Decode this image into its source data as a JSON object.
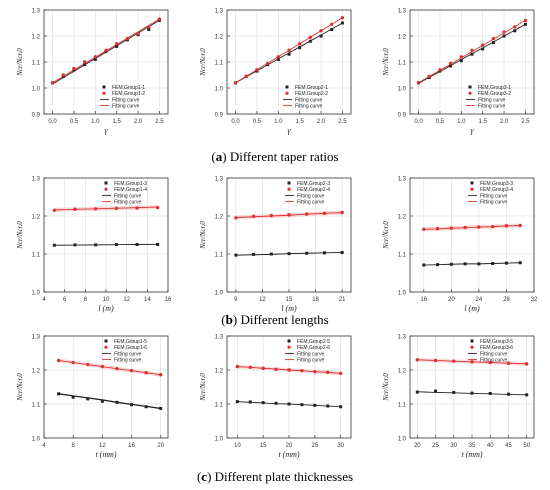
{
  "captions": [
    {
      "letter": "a",
      "text": "Different taper ratios"
    },
    {
      "letter": "b",
      "text": "Different lengths"
    },
    {
      "letter": "c",
      "text": "Different plate thicknesses"
    }
  ],
  "colors": {
    "black_series": "#222222",
    "red_series": "#e03030",
    "red_band": "#f4b9b9",
    "grid": "#dddddd"
  },
  "chart_data": [
    {
      "type": "line",
      "row": 0,
      "col": 0,
      "xlabel": "γ",
      "ylabel": "Ncr/Ncr,0",
      "xlim": [
        -0.2,
        2.7
      ],
      "ylim": [
        0.9,
        1.3
      ],
      "xticks": [
        "0.0",
        "0.5",
        "1.0",
        "1.5",
        "2.0",
        "2.5"
      ],
      "xtick_values": [
        0,
        0.5,
        1,
        1.5,
        2,
        2.5
      ],
      "yticks": [
        "0.9",
        "1.0",
        "1.1",
        "1.2",
        "1.3"
      ],
      "ytick_values": [
        0.9,
        1.0,
        1.1,
        1.2,
        1.3
      ],
      "x": [
        0,
        0.25,
        0.5,
        0.75,
        1,
        1.25,
        1.5,
        1.75,
        2,
        2.25,
        2.5
      ],
      "series": [
        {
          "name": "FEM,Group1-1",
          "kind": "points",
          "color": "black",
          "values": [
            1.02,
            1.045,
            1.07,
            1.09,
            1.11,
            1.14,
            1.16,
            1.185,
            1.205,
            1.225,
            1.26
          ]
        },
        {
          "name": "FEM,Group1-2",
          "kind": "points",
          "color": "red",
          "values": [
            1.02,
            1.05,
            1.075,
            1.1,
            1.12,
            1.145,
            1.17,
            1.19,
            1.21,
            1.235,
            1.265
          ]
        },
        {
          "name": "Fitting curve",
          "kind": "line",
          "color": "black",
          "values": [
            1.015,
            1.04,
            1.064,
            1.089,
            1.113,
            1.138,
            1.162,
            1.187,
            1.211,
            1.236,
            1.26
          ]
        },
        {
          "name": "Fitting curve",
          "kind": "line",
          "color": "red",
          "values": [
            1.02,
            1.045,
            1.069,
            1.094,
            1.118,
            1.143,
            1.167,
            1.192,
            1.216,
            1.241,
            1.265
          ]
        }
      ]
    },
    {
      "type": "line",
      "row": 0,
      "col": 1,
      "xlabel": "γ",
      "ylabel": "Ncr/Ncr,0",
      "xlim": [
        -0.2,
        2.7
      ],
      "ylim": [
        0.9,
        1.3
      ],
      "xticks": [
        "0.0",
        "0.5",
        "1.0",
        "1.5",
        "2.0",
        "2.5"
      ],
      "xtick_values": [
        0,
        0.5,
        1,
        1.5,
        2,
        2.5
      ],
      "yticks": [
        "0.9",
        "1.0",
        "1.1",
        "1.2",
        "1.3"
      ],
      "ytick_values": [
        0.9,
        1.0,
        1.1,
        1.2,
        1.3
      ],
      "x": [
        0,
        0.25,
        0.5,
        0.75,
        1,
        1.25,
        1.5,
        1.75,
        2,
        2.25,
        2.5
      ],
      "series": [
        {
          "name": "FEM,Group2-1",
          "kind": "points",
          "color": "black",
          "values": [
            1.02,
            1.045,
            1.065,
            1.09,
            1.11,
            1.13,
            1.155,
            1.18,
            1.2,
            1.225,
            1.25
          ]
        },
        {
          "name": "FEM,Group2-2",
          "kind": "points",
          "color": "red",
          "values": [
            1.02,
            1.045,
            1.07,
            1.095,
            1.12,
            1.145,
            1.17,
            1.195,
            1.22,
            1.245,
            1.27
          ]
        },
        {
          "name": "Fitting curve",
          "kind": "line",
          "color": "black",
          "values": [
            1.02,
            1.043,
            1.066,
            1.089,
            1.112,
            1.135,
            1.158,
            1.181,
            1.204,
            1.227,
            1.25
          ]
        },
        {
          "name": "Fitting curve",
          "kind": "line",
          "color": "red",
          "values": [
            1.02,
            1.045,
            1.07,
            1.095,
            1.12,
            1.145,
            1.17,
            1.195,
            1.22,
            1.245,
            1.27
          ]
        }
      ]
    },
    {
      "type": "line",
      "row": 0,
      "col": 2,
      "xlabel": "γ",
      "ylabel": "Ncr/Ncr,0",
      "xlim": [
        -0.2,
        2.7
      ],
      "ylim": [
        0.9,
        1.3
      ],
      "xticks": [
        "0.0",
        "0.5",
        "1.0",
        "1.5",
        "2.0",
        "2.5"
      ],
      "xtick_values": [
        0,
        0.5,
        1,
        1.5,
        2,
        2.5
      ],
      "yticks": [
        "0.9",
        "1.0",
        "1.1",
        "1.2",
        "1.3"
      ],
      "ytick_values": [
        0.9,
        1.0,
        1.1,
        1.2,
        1.3
      ],
      "x": [
        0,
        0.25,
        0.5,
        0.75,
        1,
        1.25,
        1.5,
        1.75,
        2,
        2.25,
        2.5
      ],
      "series": [
        {
          "name": "FEM,Group3-1",
          "kind": "points",
          "color": "black",
          "values": [
            1.02,
            1.04,
            1.065,
            1.085,
            1.105,
            1.13,
            1.15,
            1.175,
            1.2,
            1.22,
            1.245
          ]
        },
        {
          "name": "FEM,Group3-2",
          "kind": "points",
          "color": "red",
          "values": [
            1.02,
            1.045,
            1.07,
            1.095,
            1.12,
            1.145,
            1.165,
            1.19,
            1.215,
            1.235,
            1.26
          ]
        },
        {
          "name": "Fitting curve",
          "kind": "line",
          "color": "black",
          "values": [
            1.018,
            1.041,
            1.063,
            1.086,
            1.109,
            1.132,
            1.154,
            1.177,
            1.2,
            1.222,
            1.245
          ]
        },
        {
          "name": "Fitting curve",
          "kind": "line",
          "color": "red",
          "values": [
            1.02,
            1.044,
            1.068,
            1.092,
            1.116,
            1.14,
            1.164,
            1.188,
            1.212,
            1.236,
            1.26
          ]
        }
      ]
    },
    {
      "type": "line",
      "row": 1,
      "col": 0,
      "xlabel": "l (m)",
      "ylabel": "Ncr/Ncr,0",
      "xlim": [
        4,
        16
      ],
      "ylim": [
        1.0,
        1.3
      ],
      "xticks": [
        "4",
        "6",
        "8",
        "10",
        "12",
        "14",
        "16"
      ],
      "xtick_values": [
        4,
        6,
        8,
        10,
        12,
        14,
        16
      ],
      "yticks": [
        "1.0",
        "1.1",
        "1.2",
        "1.3"
      ],
      "ytick_values": [
        1.0,
        1.1,
        1.2,
        1.3
      ],
      "x": [
        5,
        7,
        9,
        11,
        13,
        15
      ],
      "series": [
        {
          "name": "FEM,Group1-3",
          "kind": "points",
          "color": "black",
          "values": [
            1.123,
            1.124,
            1.124,
            1.125,
            1.125,
            1.125
          ]
        },
        {
          "name": "FEM,Group1-4",
          "kind": "points",
          "color": "red",
          "values": [
            1.215,
            1.218,
            1.219,
            1.22,
            1.221,
            1.222
          ]
        },
        {
          "name": "Fitting curve",
          "kind": "line",
          "color": "black",
          "values": [
            1.123,
            1.1235,
            1.124,
            1.1245,
            1.125,
            1.1255
          ]
        },
        {
          "name": "Fitting curve",
          "kind": "line",
          "color": "red",
          "values": [
            1.216,
            1.2175,
            1.219,
            1.2205,
            1.222,
            1.2235
          ]
        }
      ]
    },
    {
      "type": "line",
      "row": 1,
      "col": 1,
      "xlabel": "l (m)",
      "ylabel": "Ncr/Ncr,0",
      "xlim": [
        8,
        22
      ],
      "ylim": [
        1.0,
        1.3
      ],
      "xticks": [
        "9",
        "12",
        "15",
        "18",
        "21"
      ],
      "xtick_values": [
        9,
        12,
        15,
        18,
        21
      ],
      "yticks": [
        "1.0",
        "1.1",
        "1.2",
        "1.3"
      ],
      "ytick_values": [
        1.0,
        1.1,
        1.2,
        1.3
      ],
      "x": [
        9,
        11,
        13,
        15,
        17,
        19,
        21
      ],
      "series": [
        {
          "name": "FEM,Group2-3",
          "kind": "points",
          "color": "black",
          "values": [
            1.097,
            1.099,
            1.1,
            1.101,
            1.102,
            1.103,
            1.104
          ]
        },
        {
          "name": "FEM,Group2-4",
          "kind": "points",
          "color": "red",
          "values": [
            1.195,
            1.199,
            1.201,
            1.203,
            1.205,
            1.207,
            1.209
          ]
        },
        {
          "name": "Fitting curve",
          "kind": "line",
          "color": "black",
          "values": [
            1.097,
            1.098,
            1.099,
            1.101,
            1.102,
            1.103,
            1.104
          ]
        },
        {
          "name": "Fitting curve",
          "kind": "line",
          "color": "red",
          "values": [
            1.196,
            1.198,
            1.2,
            1.202,
            1.205,
            1.207,
            1.209
          ]
        }
      ]
    },
    {
      "type": "line",
      "row": 1,
      "col": 2,
      "xlabel": "l (m)",
      "ylabel": "Ncr/Ncr,0",
      "xlim": [
        14,
        32
      ],
      "ylim": [
        1.0,
        1.3
      ],
      "xticks": [
        "16",
        "20",
        "24",
        "28",
        "32"
      ],
      "xtick_values": [
        16,
        20,
        24,
        28,
        32
      ],
      "yticks": [
        "1.0",
        "1.1",
        "1.2",
        "1.3"
      ],
      "ytick_values": [
        1.0,
        1.1,
        1.2,
        1.3
      ],
      "x": [
        16,
        18,
        20,
        22,
        24,
        26,
        28,
        30
      ],
      "series": [
        {
          "name": "FEM,Group3-3",
          "kind": "points",
          "color": "black",
          "values": [
            1.071,
            1.072,
            1.073,
            1.074,
            1.074,
            1.075,
            1.076,
            1.077
          ]
        },
        {
          "name": "FEM,Group3-4",
          "kind": "points",
          "color": "red",
          "values": [
            1.165,
            1.167,
            1.168,
            1.17,
            1.171,
            1.172,
            1.174,
            1.175
          ]
        },
        {
          "name": "Fitting curve",
          "kind": "line",
          "color": "black",
          "values": [
            1.071,
            1.072,
            1.073,
            1.074,
            1.074,
            1.075,
            1.076,
            1.077
          ]
        },
        {
          "name": "Fitting curve",
          "kind": "line",
          "color": "red",
          "values": [
            1.165,
            1.166,
            1.168,
            1.169,
            1.171,
            1.172,
            1.174,
            1.175
          ]
        }
      ]
    },
    {
      "type": "line",
      "row": 2,
      "col": 0,
      "xlabel": "t (mm)",
      "ylabel": "Ncr/Ncr,0",
      "xlim": [
        4,
        21
      ],
      "ylim": [
        1.0,
        1.3
      ],
      "xticks": [
        "4",
        "8",
        "12",
        "16",
        "20"
      ],
      "xtick_values": [
        4,
        8,
        12,
        16,
        20
      ],
      "yticks": [
        "1.0",
        "1.1",
        "1.2",
        "1.3"
      ],
      "ytick_values": [
        1.0,
        1.1,
        1.2,
        1.3
      ],
      "x": [
        6,
        8,
        10,
        12,
        14,
        16,
        18,
        20
      ],
      "series": [
        {
          "name": "FEM,Group1-5",
          "kind": "points",
          "color": "black",
          "values": [
            1.13,
            1.12,
            1.115,
            1.108,
            1.105,
            1.098,
            1.092,
            1.087
          ]
        },
        {
          "name": "FEM,Group1-6",
          "kind": "points",
          "color": "red",
          "values": [
            1.228,
            1.222,
            1.216,
            1.21,
            1.204,
            1.198,
            1.192,
            1.186
          ]
        },
        {
          "name": "Fitting curve",
          "kind": "line",
          "color": "black",
          "values": [
            1.13,
            1.124,
            1.118,
            1.112,
            1.105,
            1.099,
            1.093,
            1.087
          ]
        },
        {
          "name": "Fitting curve",
          "kind": "line",
          "color": "red",
          "values": [
            1.228,
            1.222,
            1.216,
            1.21,
            1.204,
            1.198,
            1.192,
            1.186
          ]
        }
      ]
    },
    {
      "type": "line",
      "row": 2,
      "col": 1,
      "xlabel": "t (mm)",
      "ylabel": "Ncr/Ncr,0",
      "xlim": [
        8,
        32
      ],
      "ylim": [
        1.0,
        1.3
      ],
      "xticks": [
        "10",
        "15",
        "20",
        "25",
        "30"
      ],
      "xtick_values": [
        10,
        15,
        20,
        25,
        30
      ],
      "yticks": [
        "1.0",
        "1.1",
        "1.2",
        "1.3"
      ],
      "ytick_values": [
        1.0,
        1.1,
        1.2,
        1.3
      ],
      "x": [
        10,
        12.5,
        15,
        17.5,
        20,
        22.5,
        25,
        27.5,
        30
      ],
      "series": [
        {
          "name": "FEM,Group2-5",
          "kind": "points",
          "color": "black",
          "values": [
            1.107,
            1.106,
            1.104,
            1.102,
            1.1,
            1.098,
            1.096,
            1.094,
            1.092
          ]
        },
        {
          "name": "FEM,Group2-6",
          "kind": "points",
          "color": "red",
          "values": [
            1.21,
            1.208,
            1.205,
            1.202,
            1.2,
            1.198,
            1.195,
            1.193,
            1.19
          ]
        },
        {
          "name": "Fitting curve",
          "kind": "line",
          "color": "black",
          "values": [
            1.107,
            1.105,
            1.103,
            1.101,
            1.1,
            1.098,
            1.096,
            1.094,
            1.092
          ]
        },
        {
          "name": "Fitting curve",
          "kind": "line",
          "color": "red",
          "values": [
            1.21,
            1.208,
            1.205,
            1.203,
            1.2,
            1.198,
            1.195,
            1.193,
            1.19
          ]
        }
      ]
    },
    {
      "type": "line",
      "row": 2,
      "col": 2,
      "xlabel": "t (mm)",
      "ylabel": "Ncr/Ncr,0",
      "xlim": [
        18,
        52
      ],
      "ylim": [
        1.0,
        1.3
      ],
      "xticks": [
        "20",
        "25",
        "30",
        "35",
        "40",
        "45",
        "50"
      ],
      "xtick_values": [
        20,
        25,
        30,
        35,
        40,
        45,
        50
      ],
      "yticks": [
        "1.0",
        "1.1",
        "1.2",
        "1.3"
      ],
      "ytick_values": [
        1.0,
        1.1,
        1.2,
        1.3
      ],
      "x": [
        20,
        25,
        30,
        35,
        40,
        45,
        50
      ],
      "series": [
        {
          "name": "FEM,Group3-5",
          "kind": "points",
          "color": "black",
          "values": [
            1.135,
            1.138,
            1.134,
            1.132,
            1.131,
            1.129,
            1.127
          ]
        },
        {
          "name": "FEM,Group3-6",
          "kind": "points",
          "color": "red",
          "values": [
            1.23,
            1.228,
            1.226,
            1.224,
            1.222,
            1.22,
            1.218
          ]
        },
        {
          "name": "Fitting curve",
          "kind": "line",
          "color": "black",
          "values": [
            1.136,
            1.134,
            1.133,
            1.131,
            1.13,
            1.128,
            1.127
          ]
        },
        {
          "name": "Fitting curve",
          "kind": "line",
          "color": "red",
          "values": [
            1.23,
            1.228,
            1.226,
            1.224,
            1.222,
            1.22,
            1.218
          ]
        }
      ]
    }
  ]
}
